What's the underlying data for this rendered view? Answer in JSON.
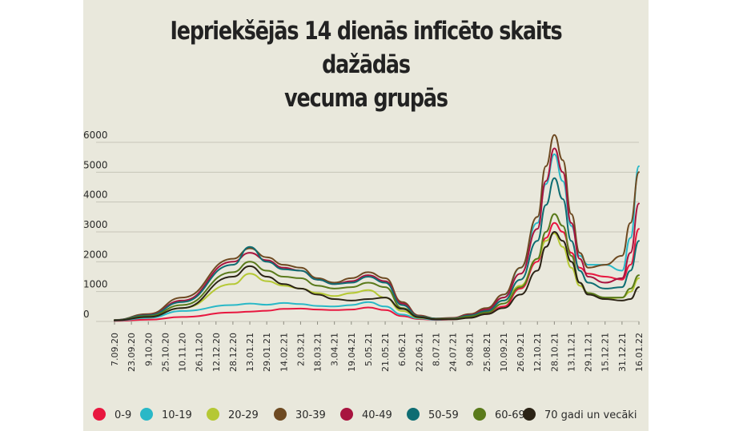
{
  "chart_data": {
    "type": "line",
    "title_lines": [
      "Iepriekšējās 14 dienās inficēto skaits dažādās",
      "vecuma grupās"
    ],
    "xlabel": "",
    "ylabel": "",
    "ylim": [
      0,
      6000
    ],
    "yticks": [
      0,
      1000,
      2000,
      3000,
      4000,
      5000,
      6000
    ],
    "grid": "horizontal",
    "legend": "bottom",
    "x_tick_labels": [
      "7.09.20",
      "23.09.20",
      "9.10.20",
      "25.10.20",
      "10.11.20",
      "26.11.20",
      "12.12.20",
      "28.12.20",
      "13.01.21",
      "29.01.21",
      "14.02.21",
      "2.03.21",
      "18.03.21",
      "3.04.21",
      "19.04.21",
      "5.05.21",
      "21.05.21",
      "6.06.21",
      "22.06.21",
      "8.07.21",
      "24.07.21",
      "9.08.21",
      "25.08.21",
      "10.09.21",
      "26.09.21",
      "12.10.21",
      "28.10.21",
      "13.11.21",
      "29.11.21",
      "15.12.21",
      "31.12.21",
      "16.01.22"
    ],
    "x_range": [
      "7.09.20",
      "16.01.22"
    ],
    "series": [
      {
        "name": "0-9",
        "color": "#e8173f",
        "values": [
          [
            "7.09.20",
            20
          ],
          [
            "9.10.20",
            60
          ],
          [
            "10.11.20",
            150
          ],
          [
            "28.12.20",
            300
          ],
          [
            "13.01.21",
            330
          ],
          [
            "29.01.21",
            360
          ],
          [
            "14.02.21",
            420
          ],
          [
            "2.03.21",
            430
          ],
          [
            "18.03.21",
            400
          ],
          [
            "3.04.21",
            380
          ],
          [
            "19.04.21",
            400
          ],
          [
            "5.05.21",
            470
          ],
          [
            "21.05.21",
            380
          ],
          [
            "6.06.21",
            180
          ],
          [
            "22.06.21",
            80
          ],
          [
            "8.07.21",
            50
          ],
          [
            "24.07.21",
            70
          ],
          [
            "9.08.21",
            150
          ],
          [
            "25.08.21",
            250
          ],
          [
            "10.09.21",
            500
          ],
          [
            "26.09.21",
            1100
          ],
          [
            "12.10.21",
            2000
          ],
          [
            "20.10.21",
            2800
          ],
          [
            "28.10.21",
            3300
          ],
          [
            "5.11.21",
            3000
          ],
          [
            "13.11.21",
            2300
          ],
          [
            "21.11.21",
            1800
          ],
          [
            "29.11.21",
            1600
          ],
          [
            "15.12.21",
            1500
          ],
          [
            "31.12.21",
            1400
          ],
          [
            "8.01.22",
            1900
          ],
          [
            "16.01.22",
            3100
          ]
        ]
      },
      {
        "name": "10-19",
        "color": "#29b8c7",
        "values": [
          [
            "7.09.20",
            30
          ],
          [
            "9.10.20",
            120
          ],
          [
            "10.11.20",
            350
          ],
          [
            "28.12.20",
            550
          ],
          [
            "13.01.21",
            600
          ],
          [
            "29.01.21",
            560
          ],
          [
            "14.02.21",
            620
          ],
          [
            "2.03.21",
            580
          ],
          [
            "18.03.21",
            520
          ],
          [
            "3.04.21",
            500
          ],
          [
            "19.04.21",
            550
          ],
          [
            "5.05.21",
            650
          ],
          [
            "21.05.21",
            500
          ],
          [
            "6.06.21",
            230
          ],
          [
            "22.06.21",
            100
          ],
          [
            "8.07.21",
            60
          ],
          [
            "24.07.21",
            90
          ],
          [
            "9.08.21",
            200
          ],
          [
            "25.08.21",
            350
          ],
          [
            "10.09.21",
            800
          ],
          [
            "26.09.21",
            1800
          ],
          [
            "12.10.21",
            3300
          ],
          [
            "20.10.21",
            4600
          ],
          [
            "28.10.21",
            5600
          ],
          [
            "5.11.21",
            4700
          ],
          [
            "13.11.21",
            3200
          ],
          [
            "21.11.21",
            2200
          ],
          [
            "29.11.21",
            1900
          ],
          [
            "15.12.21",
            1900
          ],
          [
            "31.12.21",
            1700
          ],
          [
            "8.01.22",
            2800
          ],
          [
            "16.01.22",
            5200
          ]
        ]
      },
      {
        "name": "20-29",
        "color": "#b5c834",
        "values": [
          [
            "7.09.20",
            40
          ],
          [
            "9.10.20",
            150
          ],
          [
            "10.11.20",
            450
          ],
          [
            "28.12.20",
            1250
          ],
          [
            "13.01.21",
            1600
          ],
          [
            "29.01.21",
            1350
          ],
          [
            "14.02.21",
            1200
          ],
          [
            "2.03.21",
            1100
          ],
          [
            "18.03.21",
            950
          ],
          [
            "3.04.21",
            850
          ],
          [
            "19.04.21",
            950
          ],
          [
            "5.05.21",
            1050
          ],
          [
            "21.05.21",
            800
          ],
          [
            "6.06.21",
            350
          ],
          [
            "22.06.21",
            120
          ],
          [
            "8.07.21",
            80
          ],
          [
            "24.07.21",
            100
          ],
          [
            "9.08.21",
            200
          ],
          [
            "25.08.21",
            350
          ],
          [
            "10.09.21",
            700
          ],
          [
            "26.09.21",
            1200
          ],
          [
            "12.10.21",
            2100
          ],
          [
            "20.10.21",
            2700
          ],
          [
            "28.10.21",
            2950
          ],
          [
            "5.11.21",
            2500
          ],
          [
            "13.11.21",
            1800
          ],
          [
            "21.11.21",
            1200
          ],
          [
            "29.11.21",
            950
          ],
          [
            "15.12.21",
            750
          ],
          [
            "31.12.21",
            800
          ],
          [
            "8.01.22",
            1000
          ],
          [
            "16.01.22",
            1450
          ]
        ]
      },
      {
        "name": "30-39",
        "color": "#6e4a22",
        "values": [
          [
            "7.09.20",
            50
          ],
          [
            "9.10.20",
            250
          ],
          [
            "10.11.20",
            800
          ],
          [
            "28.12.20",
            2100
          ],
          [
            "13.01.21",
            2450
          ],
          [
            "29.01.21",
            2150
          ],
          [
            "14.02.21",
            1900
          ],
          [
            "2.03.21",
            1800
          ],
          [
            "18.03.21",
            1450
          ],
          [
            "3.04.21",
            1300
          ],
          [
            "19.04.21",
            1450
          ],
          [
            "5.05.21",
            1650
          ],
          [
            "21.05.21",
            1450
          ],
          [
            "6.06.21",
            650
          ],
          [
            "22.06.21",
            200
          ],
          [
            "8.07.21",
            100
          ],
          [
            "24.07.21",
            120
          ],
          [
            "9.08.21",
            250
          ],
          [
            "25.08.21",
            450
          ],
          [
            "10.09.21",
            900
          ],
          [
            "26.09.21",
            1800
          ],
          [
            "12.10.21",
            3500
          ],
          [
            "20.10.21",
            5200
          ],
          [
            "28.10.21",
            6250
          ],
          [
            "5.11.21",
            5400
          ],
          [
            "13.11.21",
            3600
          ],
          [
            "21.11.21",
            2300
          ],
          [
            "29.11.21",
            1800
          ],
          [
            "15.12.21",
            1900
          ],
          [
            "31.12.21",
            2200
          ],
          [
            "8.01.22",
            3300
          ],
          [
            "16.01.22",
            5000
          ]
        ]
      },
      {
        "name": "40-49",
        "color": "#a8143f",
        "values": [
          [
            "7.09.20",
            45
          ],
          [
            "9.10.20",
            220
          ],
          [
            "10.11.20",
            700
          ],
          [
            "28.12.20",
            2000
          ],
          [
            "13.01.21",
            2300
          ],
          [
            "29.01.21",
            2050
          ],
          [
            "14.02.21",
            1800
          ],
          [
            "2.03.21",
            1700
          ],
          [
            "18.03.21",
            1400
          ],
          [
            "3.04.21",
            1250
          ],
          [
            "19.04.21",
            1350
          ],
          [
            "5.05.21",
            1550
          ],
          [
            "21.05.21",
            1350
          ],
          [
            "6.06.21",
            600
          ],
          [
            "22.06.21",
            180
          ],
          [
            "8.07.21",
            90
          ],
          [
            "24.07.21",
            110
          ],
          [
            "9.08.21",
            220
          ],
          [
            "25.08.21",
            400
          ],
          [
            "10.09.21",
            800
          ],
          [
            "26.09.21",
            1600
          ],
          [
            "12.10.21",
            3100
          ],
          [
            "20.10.21",
            4700
          ],
          [
            "28.10.21",
            5800
          ],
          [
            "5.11.21",
            5000
          ],
          [
            "13.11.21",
            3300
          ],
          [
            "21.11.21",
            2100
          ],
          [
            "29.11.21",
            1500
          ],
          [
            "15.12.21",
            1300
          ],
          [
            "31.12.21",
            1450
          ],
          [
            "8.01.22",
            2300
          ],
          [
            "16.01.22",
            3950
          ]
        ]
      },
      {
        "name": "50-59",
        "color": "#0f6d73",
        "values": [
          [
            "7.09.20",
            45
          ],
          [
            "9.10.20",
            210
          ],
          [
            "10.11.20",
            650
          ],
          [
            "28.12.20",
            1900
          ],
          [
            "13.01.21",
            2500
          ],
          [
            "29.01.21",
            2000
          ],
          [
            "14.02.21",
            1750
          ],
          [
            "2.03.21",
            1700
          ],
          [
            "18.03.21",
            1400
          ],
          [
            "3.04.21",
            1250
          ],
          [
            "19.04.21",
            1300
          ],
          [
            "5.05.21",
            1500
          ],
          [
            "21.05.21",
            1300
          ],
          [
            "6.06.21",
            550
          ],
          [
            "22.06.21",
            170
          ],
          [
            "8.07.21",
            90
          ],
          [
            "24.07.21",
            100
          ],
          [
            "9.08.21",
            200
          ],
          [
            "25.08.21",
            350
          ],
          [
            "10.09.21",
            700
          ],
          [
            "26.09.21",
            1400
          ],
          [
            "12.10.21",
            2700
          ],
          [
            "20.10.21",
            3900
          ],
          [
            "28.10.21",
            4800
          ],
          [
            "5.11.21",
            4100
          ],
          [
            "13.11.21",
            2700
          ],
          [
            "21.11.21",
            1700
          ],
          [
            "29.11.21",
            1300
          ],
          [
            "15.12.21",
            1100
          ],
          [
            "31.12.21",
            1150
          ],
          [
            "8.01.22",
            1700
          ],
          [
            "16.01.22",
            2700
          ]
        ]
      },
      {
        "name": "60-69",
        "color": "#5a7a1b",
        "values": [
          [
            "7.09.20",
            40
          ],
          [
            "9.10.20",
            180
          ],
          [
            "10.11.20",
            550
          ],
          [
            "28.12.20",
            1650
          ],
          [
            "13.01.21",
            2000
          ],
          [
            "29.01.21",
            1700
          ],
          [
            "14.02.21",
            1500
          ],
          [
            "2.03.21",
            1450
          ],
          [
            "18.03.21",
            1200
          ],
          [
            "3.04.21",
            1100
          ],
          [
            "19.04.21",
            1150
          ],
          [
            "5.05.21",
            1300
          ],
          [
            "21.05.21",
            1150
          ],
          [
            "6.06.21",
            450
          ],
          [
            "22.06.21",
            150
          ],
          [
            "8.07.21",
            80
          ],
          [
            "24.07.21",
            90
          ],
          [
            "9.08.21",
            170
          ],
          [
            "25.08.21",
            300
          ],
          [
            "10.09.21",
            600
          ],
          [
            "26.09.21",
            1150
          ],
          [
            "12.10.21",
            2100
          ],
          [
            "20.10.21",
            3000
          ],
          [
            "28.10.21",
            3600
          ],
          [
            "5.11.21",
            3200
          ],
          [
            "13.11.21",
            2200
          ],
          [
            "21.11.21",
            1300
          ],
          [
            "29.11.21",
            950
          ],
          [
            "15.12.21",
            800
          ],
          [
            "31.12.21",
            800
          ],
          [
            "8.01.22",
            1100
          ],
          [
            "16.01.22",
            1550
          ]
        ]
      },
      {
        "name": "70 gadi un vecāki",
        "color": "#2b2316",
        "values": [
          [
            "7.09.20",
            35
          ],
          [
            "9.10.20",
            150
          ],
          [
            "10.11.20",
            450
          ],
          [
            "28.12.20",
            1500
          ],
          [
            "13.01.21",
            1850
          ],
          [
            "29.01.21",
            1500
          ],
          [
            "14.02.21",
            1250
          ],
          [
            "2.03.21",
            1100
          ],
          [
            "18.03.21",
            900
          ],
          [
            "3.04.21",
            750
          ],
          [
            "19.04.21",
            700
          ],
          [
            "5.05.21",
            750
          ],
          [
            "21.05.21",
            800
          ],
          [
            "6.06.21",
            420
          ],
          [
            "22.06.21",
            140
          ],
          [
            "8.07.21",
            70
          ],
          [
            "24.07.21",
            70
          ],
          [
            "9.08.21",
            120
          ],
          [
            "25.08.21",
            250
          ],
          [
            "10.09.21",
            450
          ],
          [
            "26.09.21",
            900
          ],
          [
            "12.10.21",
            1700
          ],
          [
            "20.10.21",
            2500
          ],
          [
            "28.10.21",
            3000
          ],
          [
            "5.11.21",
            2700
          ],
          [
            "13.11.21",
            2000
          ],
          [
            "21.11.21",
            1300
          ],
          [
            "29.11.21",
            900
          ],
          [
            "15.12.21",
            750
          ],
          [
            "31.12.21",
            700
          ],
          [
            "8.01.22",
            750
          ],
          [
            "16.01.22",
            1150
          ]
        ]
      }
    ]
  }
}
